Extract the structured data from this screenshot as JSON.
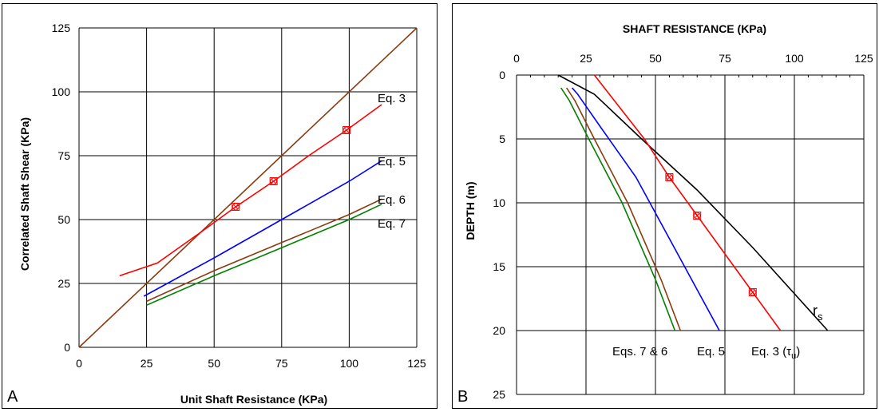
{
  "chart_data": [
    {
      "panel": "A",
      "type": "line",
      "xlabel": "Unit Shaft Resistance  (KPa)",
      "ylabel": "Correlated Shaft Shear  (KPa)",
      "xlim": [
        0,
        125
      ],
      "ylim": [
        0,
        125
      ],
      "xticks": [
        0,
        25,
        50,
        75,
        100,
        125
      ],
      "yticks": [
        0,
        25,
        50,
        75,
        100,
        125
      ],
      "grid": true,
      "series": [
        {
          "key": "oneToOne",
          "color": "#8B3A0E",
          "x": [
            0,
            125
          ],
          "y": [
            0,
            125
          ]
        },
        {
          "key": "eq3",
          "name": "Eq. 3",
          "color": "#ff0000",
          "x": [
            15,
            29,
            45,
            58,
            72,
            85,
            99,
            112
          ],
          "y": [
            28,
            33,
            45,
            55,
            65,
            75,
            85,
            95
          ],
          "markers": [
            [
              58,
              55
            ],
            [
              72,
              65
            ],
            [
              99,
              85
            ]
          ]
        },
        {
          "key": "eq5",
          "name": "Eq. 5",
          "color": "#0000ff",
          "x": [
            24,
            50,
            75,
            100,
            112
          ],
          "y": [
            20,
            35,
            50,
            65,
            73
          ]
        },
        {
          "key": "eq6",
          "name": "Eq. 6",
          "color": "#8B3A0E",
          "x": [
            25,
            50,
            75,
            100,
            112
          ],
          "y": [
            18,
            30,
            41,
            52,
            58
          ]
        },
        {
          "key": "eq7",
          "name": "Eq. 7",
          "color": "#008000",
          "x": [
            25,
            50,
            75,
            100,
            112
          ],
          "y": [
            16.5,
            28,
            39,
            50,
            56
          ]
        }
      ],
      "labels": {
        "eq3": "Eq. 3",
        "eq5": "Eq. 5",
        "eq6": "Eq. 6",
        "eq7": "Eq. 7"
      },
      "panel_letter": "A"
    },
    {
      "panel": "B",
      "type": "line",
      "title": "SHAFT RESISTANCE  (KPa)",
      "ylabel": "DEPTH  (m)",
      "xlim": [
        0,
        125
      ],
      "ylim": [
        0,
        25
      ],
      "xticks": [
        0,
        25,
        50,
        75,
        100,
        125
      ],
      "yticks": [
        0,
        5,
        10,
        15,
        20,
        25
      ],
      "grid": true,
      "series": [
        {
          "key": "rs",
          "name": "r",
          "color": "#000000",
          "x": [
            15,
            28,
            45,
            65,
            85,
            112
          ],
          "y": [
            0,
            1.5,
            5,
            9,
            13.5,
            20
          ]
        },
        {
          "key": "eq3",
          "name": "Eq. 3 (τu)",
          "color": "#ff0000",
          "x": [
            28,
            46,
            55,
            65,
            75,
            85,
            95
          ],
          "y": [
            0,
            5,
            8,
            11,
            14,
            17,
            20
          ],
          "markers": [
            [
              55,
              8
            ],
            [
              65,
              11
            ],
            [
              85,
              17
            ]
          ]
        },
        {
          "key": "eq5",
          "name": "Eq. 5",
          "color": "#0000ff",
          "x": [
            20,
            22,
            30,
            43,
            58,
            73
          ],
          "y": [
            1,
            1.5,
            4,
            8,
            14,
            20
          ]
        },
        {
          "key": "eq6",
          "name": "Eqs. 7 & 6",
          "color": "#8B3A0E",
          "x": [
            18,
            21,
            28,
            40,
            52,
            59
          ],
          "y": [
            1,
            2,
            5,
            10,
            16,
            20
          ]
        },
        {
          "key": "eq7",
          "name": "Eqs. 7 & 6",
          "color": "#008000",
          "x": [
            16,
            19,
            26,
            38,
            50,
            57
          ],
          "y": [
            1,
            2,
            5,
            10,
            16,
            20
          ]
        }
      ],
      "labels": {
        "eqs76": "Eqs. 7 & 6",
        "eq5": "Eq. 5",
        "eq3": "Eq. 3 (τ",
        "eq3_sub": "u",
        "eq3_close": ")",
        "rs": "r",
        "rs_sub": "s"
      },
      "panel_letter": "B"
    }
  ]
}
